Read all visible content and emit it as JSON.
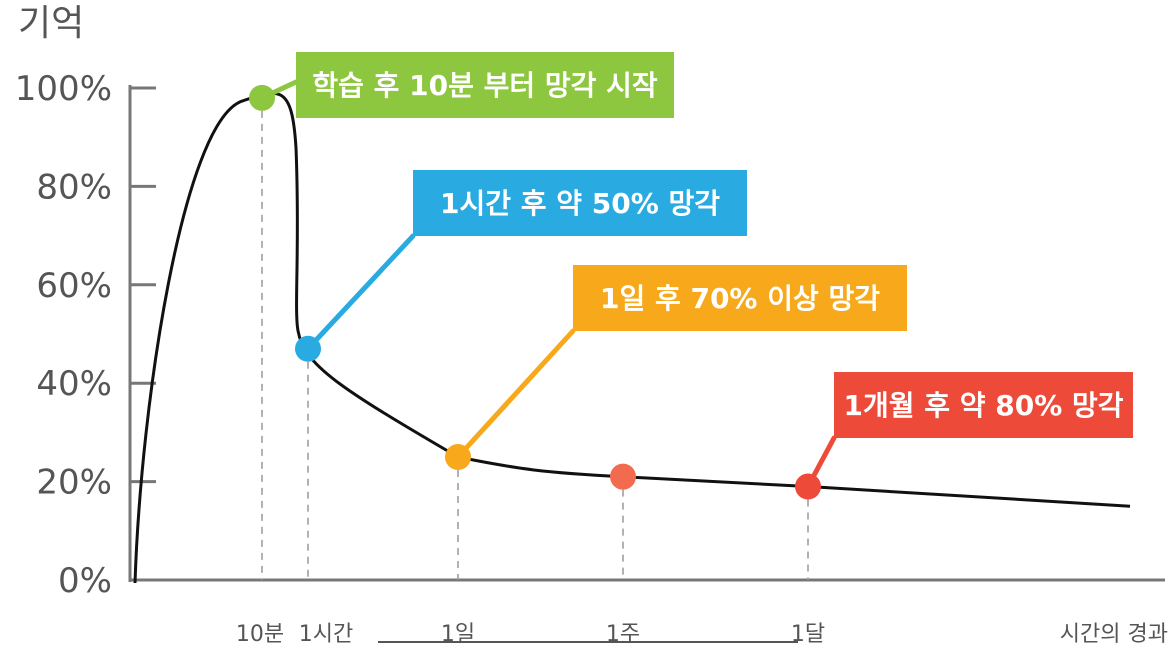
{
  "chart_data": {
    "type": "line",
    "ylabel": "기억",
    "xlabel": "시간의 경과",
    "ylim": [
      0,
      100
    ],
    "yticks": [
      "0%",
      "20%",
      "40%",
      "60%",
      "80%",
      "100%"
    ],
    "ytick_values": [
      0,
      20,
      40,
      60,
      80,
      100
    ],
    "xticks": [
      "10분",
      "1시간",
      "1일",
      "1주",
      "1달"
    ],
    "series": [
      {
        "values": [
          {
            "x": "0",
            "y": 0
          },
          {
            "x": "10분",
            "y": 98
          },
          {
            "x": "1시간",
            "y": 47
          },
          {
            "x": "1일",
            "y": 25
          },
          {
            "x": "1주",
            "y": 21
          },
          {
            "x": "1달",
            "y": 19
          },
          {
            "x": "end",
            "y": 15
          }
        ]
      }
    ],
    "markers": [
      {
        "x": "10분",
        "y": 98,
        "color": "#8dc63f"
      },
      {
        "x": "1시간",
        "y": 47,
        "color": "#29abe2"
      },
      {
        "x": "1일",
        "y": 25,
        "color": "#f7a81b"
      },
      {
        "x": "1주",
        "y": 21,
        "color": "#f26b4f"
      },
      {
        "x": "1달",
        "y": 19,
        "color": "#ed4a3a"
      }
    ],
    "annotations": [
      {
        "text": "학습 후 10분 부터 망각 시작",
        "color": "#8dc63f",
        "target": "10분"
      },
      {
        "text": "1시간 후 약 50% 망각",
        "color": "#29abe2",
        "target": "1시간"
      },
      {
        "text": "1일 후 70% 이상 망각",
        "color": "#f7a81b",
        "target": "1일"
      },
      {
        "text": "1개월 후 약 80% 망각",
        "color": "#ed4a3a",
        "target": "1달"
      }
    ],
    "grid": false,
    "line_color": "#111111"
  }
}
